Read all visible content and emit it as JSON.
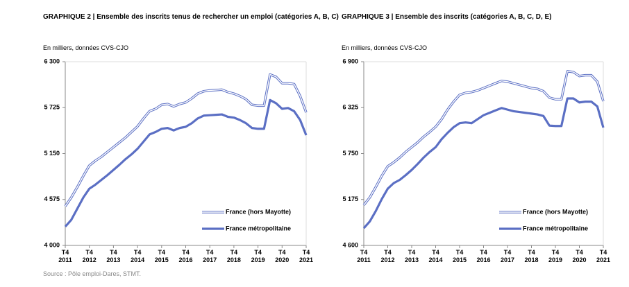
{
  "chart_data": [
    {
      "type": "line",
      "title": "GRAPHIQUE 2 | Ensemble des inscrits tenus de rechercher un emploi (catégories A, B, C)",
      "subtitle": "En milliers, données CVS-CJO",
      "categories": [
        "T4 2011",
        null,
        null,
        null,
        "T4 2012",
        null,
        null,
        null,
        "T4 2013",
        null,
        null,
        null,
        "T4 2014",
        null,
        null,
        null,
        "T4 2015",
        null,
        null,
        null,
        "T4 2016",
        null,
        null,
        null,
        "T4 2017",
        null,
        null,
        null,
        "T4 2018",
        null,
        null,
        null,
        "T4 2019",
        null,
        null,
        null,
        "T4 2020",
        null,
        null,
        null,
        "T4 2021"
      ],
      "ylim": [
        4000,
        6300
      ],
      "yticks": [
        {
          "value": 4000,
          "label": "4 000"
        },
        {
          "value": 4575,
          "label": "4 575"
        },
        {
          "value": 5150,
          "label": "5 150"
        },
        {
          "value": 5725,
          "label": "5 725"
        },
        {
          "value": 6300,
          "label": "6 300"
        }
      ],
      "legend": "lower right",
      "series": [
        {
          "name": "France (hors Mayotte)",
          "color": "#5b6fc4",
          "line_style": "outline",
          "values": [
            4490,
            4600,
            4730,
            4870,
            5000,
            5060,
            5110,
            5170,
            5230,
            5290,
            5350,
            5420,
            5490,
            5590,
            5680,
            5710,
            5760,
            5770,
            5740,
            5770,
            5790,
            5840,
            5900,
            5930,
            5940,
            5945,
            5950,
            5920,
            5900,
            5870,
            5830,
            5760,
            5750,
            5750,
            6140,
            6110,
            6030,
            6030,
            6020,
            5870,
            5665
          ]
        },
        {
          "name": "France métropolitaine",
          "color": "#5b6fc4",
          "line_style": "solid",
          "values": [
            4235,
            4320,
            4460,
            4600,
            4710,
            4760,
            4820,
            4880,
            4945,
            5010,
            5080,
            5140,
            5210,
            5300,
            5390,
            5420,
            5460,
            5470,
            5440,
            5470,
            5485,
            5530,
            5590,
            5625,
            5630,
            5635,
            5640,
            5610,
            5600,
            5570,
            5530,
            5470,
            5460,
            5460,
            5820,
            5780,
            5710,
            5720,
            5680,
            5570,
            5380
          ]
        }
      ]
    },
    {
      "type": "line",
      "title": "GRAPHIQUE 3 | Ensemble des inscrits (catégories A, B, C, D, E)",
      "subtitle": "En milliers, données CVS-CJO",
      "categories": [
        "T4 2011",
        null,
        null,
        null,
        "T4 2012",
        null,
        null,
        null,
        "T4 2013",
        null,
        null,
        null,
        "T4 2014",
        null,
        null,
        null,
        "T4 2015",
        null,
        null,
        null,
        "T4 2016",
        null,
        null,
        null,
        "T4 2017",
        null,
        null,
        null,
        "T4 2018",
        null,
        null,
        null,
        "T4 2019",
        null,
        null,
        null,
        "T4 2020",
        null,
        null,
        null,
        "T4 2021"
      ],
      "ylim": [
        4600,
        6900
      ],
      "yticks": [
        {
          "value": 4600,
          "label": "4 600"
        },
        {
          "value": 5175,
          "label": "5 175"
        },
        {
          "value": 5750,
          "label": "5 750"
        },
        {
          "value": 6325,
          "label": "6 325"
        },
        {
          "value": 6900,
          "label": "6 900"
        }
      ],
      "legend": "lower right",
      "series": [
        {
          "name": "France (hors Mayotte)",
          "color": "#5b6fc4",
          "line_style": "outline",
          "values": [
            5105,
            5200,
            5330,
            5470,
            5590,
            5640,
            5700,
            5770,
            5830,
            5890,
            5960,
            6020,
            6085,
            6180,
            6300,
            6400,
            6485,
            6510,
            6520,
            6540,
            6570,
            6600,
            6630,
            6660,
            6650,
            6630,
            6610,
            6590,
            6570,
            6560,
            6530,
            6450,
            6430,
            6430,
            6780,
            6770,
            6720,
            6730,
            6730,
            6650,
            6405
          ]
        },
        {
          "name": "France métropolitaine",
          "color": "#5b6fc4",
          "line_style": "solid",
          "values": [
            4815,
            4900,
            5030,
            5180,
            5310,
            5380,
            5420,
            5480,
            5545,
            5620,
            5700,
            5770,
            5830,
            5930,
            6010,
            6080,
            6130,
            6140,
            6130,
            6180,
            6230,
            6260,
            6290,
            6320,
            6300,
            6280,
            6270,
            6260,
            6250,
            6240,
            6220,
            6100,
            6095,
            6095,
            6440,
            6440,
            6390,
            6400,
            6400,
            6340,
            6075
          ]
        }
      ]
    }
  ],
  "source": "Source : Pôle emploi-Dares, STMT."
}
